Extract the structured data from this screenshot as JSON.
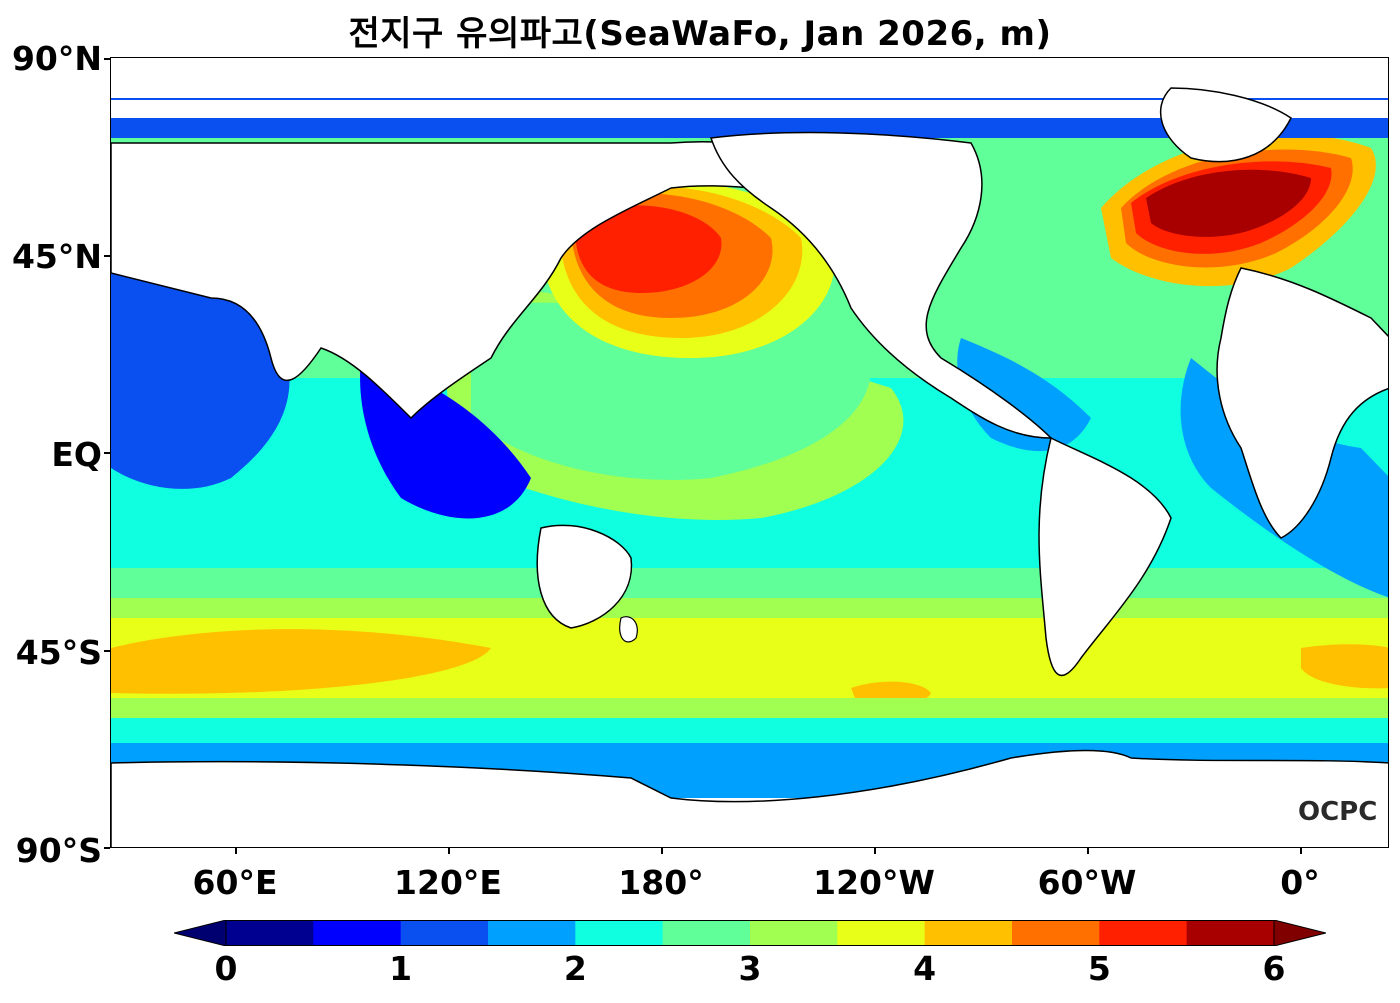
{
  "title": "전지구 유의파고(SeaWaFo, Jan 2026, m)",
  "map": {
    "variable": "유의파고",
    "model": "SeaWaFo",
    "period": "Jan 2026",
    "unit": "m",
    "lat_labels": [
      "90°N",
      "45°N",
      "EQ",
      "45°S",
      "90°S"
    ],
    "lon_labels": [
      "60°E",
      "120°E",
      "180°",
      "120°W",
      "60°W",
      "0°"
    ],
    "land_color": "#ffffff",
    "coastline_color": "#000000"
  },
  "colorbar": {
    "tick_labels": [
      "0",
      "1",
      "2",
      "3",
      "4",
      "5",
      "6"
    ],
    "levels": [
      0,
      0.5,
      1,
      1.5,
      2,
      2.5,
      3,
      3.5,
      4,
      4.5,
      5,
      5.5,
      6
    ],
    "colors": [
      "#000090",
      "#0000ff",
      "#0a50f0",
      "#00a0ff",
      "#10ffe0",
      "#60ff9a",
      "#a0ff50",
      "#e8ff18",
      "#ffc000",
      "#ff7000",
      "#ff2000",
      "#a80000"
    ],
    "under_color": "#000070",
    "over_color": "#800000",
    "extend": "both"
  },
  "logo": "OCPC"
}
